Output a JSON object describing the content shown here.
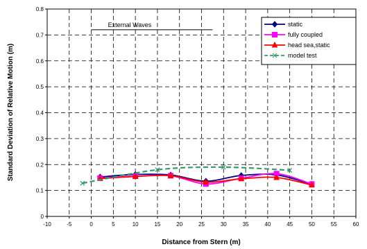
{
  "chart_data": {
    "type": "line",
    "xlabel": "Distance from Stern (m)",
    "ylabel": "Standard Deviation of Relative Motion (m)",
    "xlim": [
      -10,
      60
    ],
    "ylim": [
      0,
      0.8
    ],
    "xticks": [
      -10,
      -5,
      0,
      5,
      10,
      15,
      20,
      25,
      30,
      35,
      40,
      45,
      50,
      55,
      60
    ],
    "xtick_labels": [
      "-10",
      "-5",
      "0",
      "5",
      "10",
      "15",
      "20",
      "25",
      "30",
      "35",
      "40",
      "45",
      "50",
      "55",
      "60"
    ],
    "yticks": [
      0,
      0.1,
      0.2,
      0.3,
      0.4,
      0.5,
      0.6,
      0.7,
      0.8
    ],
    "ytick_labels": [
      "0",
      "0.1",
      "0.2",
      "0.3",
      "0.4",
      "0.5",
      "0.6",
      "0.7",
      "0.8"
    ],
    "grid": true,
    "legend_position": "top-right",
    "series": [
      {
        "name": "static",
        "color": "#000080",
        "marker": "diamond",
        "dash": "solid",
        "x": [
          2,
          10,
          18,
          26,
          34,
          42,
          50
        ],
        "y": [
          0.152,
          0.162,
          0.16,
          0.136,
          0.158,
          0.16,
          0.124
        ]
      },
      {
        "name": "fully coupled",
        "color": "#ff00ff",
        "marker": "square",
        "dash": "solid",
        "x": [
          2,
          10,
          18,
          26,
          34,
          42,
          50
        ],
        "y": [
          0.148,
          0.155,
          0.157,
          0.125,
          0.147,
          0.165,
          0.125
        ]
      },
      {
        "name": "head sea,static",
        "color": "#ff0000",
        "marker": "triangle",
        "dash": "solid",
        "x": [
          2,
          10,
          18,
          26,
          34,
          42,
          50
        ],
        "y": [
          0.146,
          0.154,
          0.157,
          0.132,
          0.145,
          0.15,
          0.121
        ]
      },
      {
        "name": "model test",
        "color": "#339966",
        "marker": "x",
        "dash": "dashed",
        "x": [
          -2,
          15,
          30,
          45
        ],
        "y": [
          0.128,
          0.18,
          0.19,
          0.178
        ]
      }
    ],
    "annotations": [
      {
        "text": "External Waves",
        "line_y": 0.72,
        "line_x": [
          0,
          27.5
        ]
      }
    ]
  }
}
